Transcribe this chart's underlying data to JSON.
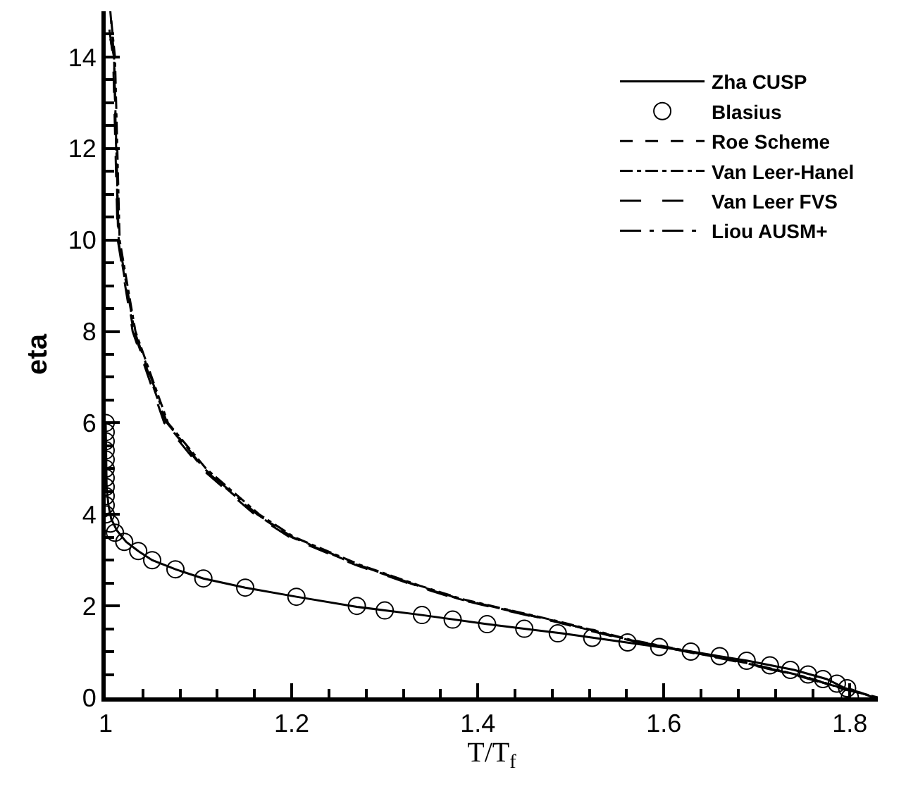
{
  "chart_data": {
    "type": "line",
    "xlabel": "T/T$_{f}$",
    "ylabel": "eta",
    "xlim": [
      1,
      1.83
    ],
    "xticks": [
      1,
      1.2,
      1.4,
      1.6,
      1.8
    ],
    "ylim": [
      0,
      15
    ],
    "yticks": [
      0,
      2,
      4,
      6,
      8,
      10,
      12,
      14
    ],
    "legend": "top right",
    "series": [
      {
        "name": "Zha CUSP",
        "line_style": "solid",
        "color": "#000000",
        "x": [
          1.0,
          1.001,
          1.003,
          1.006,
          1.012,
          1.022,
          1.035,
          1.05,
          1.075,
          1.105,
          1.15,
          1.205,
          1.27,
          1.34,
          1.41,
          1.49,
          1.56,
          1.63,
          1.69,
          1.74,
          1.775,
          1.795,
          1.812,
          1.825
        ],
        "values": [
          6.0,
          4.6,
          4.2,
          3.9,
          3.65,
          3.4,
          3.2,
          3.0,
          2.8,
          2.6,
          2.4,
          2.2,
          1.98,
          1.8,
          1.6,
          1.4,
          1.2,
          1.0,
          0.8,
          0.6,
          0.4,
          0.2,
          0.1,
          0.0
        ]
      },
      {
        "name": "Blasius",
        "type": "scatter",
        "marker": "circle",
        "color": "#000000",
        "x": [
          1.0,
          1.0,
          1.0,
          1.0,
          1.0,
          1.0,
          1.0,
          1.0,
          1.0,
          1.0,
          1.0,
          1.005,
          1.01,
          1.02,
          1.035,
          1.05,
          1.075,
          1.105,
          1.15,
          1.205,
          1.27,
          1.3,
          1.34,
          1.373,
          1.41,
          1.45,
          1.486,
          1.523,
          1.561,
          1.595,
          1.629,
          1.66,
          1.689,
          1.714,
          1.736,
          1.755,
          1.771,
          1.786,
          1.797,
          1.8
        ],
        "values": [
          6.0,
          5.8,
          5.6,
          5.4,
          5.2,
          5.0,
          4.8,
          4.6,
          4.4,
          4.2,
          4.0,
          3.8,
          3.6,
          3.4,
          3.2,
          3.0,
          2.8,
          2.6,
          2.4,
          2.2,
          2.0,
          1.9,
          1.8,
          1.7,
          1.6,
          1.5,
          1.4,
          1.3,
          1.2,
          1.1,
          1.0,
          0.9,
          0.8,
          0.7,
          0.6,
          0.5,
          0.4,
          0.3,
          0.2,
          0.0
        ]
      },
      {
        "name": "Roe Scheme",
        "line_style": "dashed",
        "color": "#000000",
        "x": [
          1.005,
          1.009,
          1.0135,
          1.03,
          1.065,
          1.105,
          1.162,
          1.2,
          1.27,
          1.335,
          1.38,
          1.486,
          1.561,
          1.686,
          1.75,
          1.8,
          1.83
        ],
        "values": [
          15,
          14,
          10,
          8,
          6,
          5,
          4,
          3.5,
          2.9,
          2.44,
          2.15,
          1.65,
          1.26,
          0.76,
          0.45,
          0.15,
          0
        ]
      },
      {
        "name": "Van Leer-Hanel",
        "line_style": "dashdot",
        "color": "#000000",
        "x": [
          1.006,
          1.01,
          1.015,
          1.032,
          1.067,
          1.108,
          1.165,
          1.203,
          1.273,
          1.338,
          1.383,
          1.489,
          1.564,
          1.689,
          1.752,
          1.8,
          1.82
        ],
        "values": [
          14.8,
          14,
          10,
          8,
          6,
          5,
          4,
          3.5,
          2.9,
          2.44,
          2.15,
          1.65,
          1.26,
          0.76,
          0.45,
          0.15,
          0.05
        ]
      },
      {
        "name": "Van Leer FVS",
        "line_style": "longdash",
        "color": "#000000",
        "x": [
          1.004,
          1.008,
          1.013,
          1.029,
          1.063,
          1.103,
          1.16,
          1.198,
          1.268,
          1.333,
          1.378,
          1.484,
          1.559,
          1.684,
          1.748,
          1.795,
          1.81
        ],
        "values": [
          14.6,
          14,
          10,
          8,
          6,
          5,
          4,
          3.5,
          2.9,
          2.44,
          2.15,
          1.65,
          1.26,
          0.76,
          0.45,
          0.17,
          0.1
        ]
      },
      {
        "name": "Liou AUSM+",
        "line_style": "longdashdot",
        "color": "#000000",
        "x": [
          1.005,
          1.009,
          1.014,
          1.031,
          1.066,
          1.106,
          1.163,
          1.201,
          1.271,
          1.336,
          1.381,
          1.487,
          1.562,
          1.687,
          1.751,
          1.79,
          1.8
        ],
        "values": [
          14.4,
          14,
          10,
          8,
          6,
          5,
          4,
          3.5,
          2.9,
          2.44,
          2.15,
          1.65,
          1.26,
          0.76,
          0.45,
          0.2,
          0.15
        ]
      }
    ]
  }
}
